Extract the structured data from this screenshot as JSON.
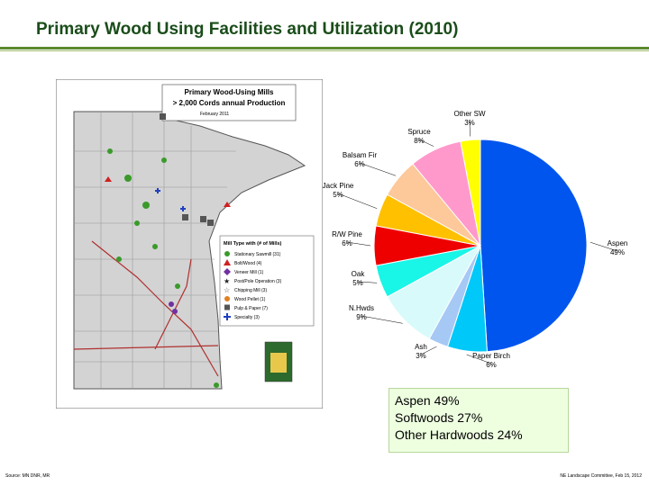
{
  "title": "Primary Wood Using Facilities and Utilization (2010)",
  "map": {
    "title_line1": "Primary Wood-Using Mills",
    "title_line2": "> 2,000 Cords annual Production",
    "date": "February 2011",
    "legend_title": "Mill Type with (# of Mills)",
    "legend_items": [
      {
        "label": "Stationary Sawmill (31)",
        "icon": "green-circle",
        "color": "#3a9a2a"
      },
      {
        "label": "Bolt/Wood (4)",
        "icon": "red-triangle",
        "color": "#d02020"
      },
      {
        "label": "Veneer Mill (1)",
        "icon": "purple-diamond",
        "color": "#7030a0"
      },
      {
        "label": "Post/Pole Operation (3)",
        "icon": "black-star",
        "color": "#222222"
      },
      {
        "label": "Chipping Mill (3)",
        "icon": "star-outline",
        "color": "#444444"
      },
      {
        "label": "Wood Pellet (1)",
        "icon": "orange-circle",
        "color": "#e08020"
      },
      {
        "label": "Pulp & Paper (7)",
        "icon": "gray-square",
        "color": "#555555"
      },
      {
        "label": "Specialty (3)",
        "icon": "blue-cross",
        "color": "#2040c0"
      }
    ]
  },
  "chart_data": {
    "type": "pie",
    "title": "",
    "slices": [
      {
        "label": "Aspen",
        "value": 49,
        "pct_label": "49%",
        "color": "#0055ee"
      },
      {
        "label": "Paper Birch",
        "value": 6,
        "pct_label": "6%",
        "color": "#00c8f8"
      },
      {
        "label": "Ash",
        "value": 3,
        "pct_label": "3%",
        "color": "#a6c8f5"
      },
      {
        "label": "N.Hwds",
        "value": 9,
        "pct_label": "9%",
        "color": "#d8fafa"
      },
      {
        "label": "Oak",
        "value": 5,
        "pct_label": "5%",
        "color": "#19f5e6"
      },
      {
        "label": "R/W Pine",
        "value": 6,
        "pct_label": "6%",
        "color": "#ee0000"
      },
      {
        "label": "Jack Pine",
        "value": 5,
        "pct_label": "5%",
        "color": "#ffc000"
      },
      {
        "label": "Balsam Fir",
        "value": 6,
        "pct_label": "6%",
        "color": "#fdc89a"
      },
      {
        "label": "Spruce",
        "value": 8,
        "pct_label": "8%",
        "color": "#ff99cc"
      },
      {
        "label": "Other SW",
        "value": 3,
        "pct_label": "3%",
        "color": "#ffff00"
      }
    ]
  },
  "summary": {
    "line1": "Aspen 49%",
    "line2": "Softwoods 27%",
    "line3": "Other Hardwoods 24%"
  },
  "footer": {
    "source": "Source: MN DNR, MR",
    "right": "NE Landscape Committee, Feb 15, 2012"
  }
}
